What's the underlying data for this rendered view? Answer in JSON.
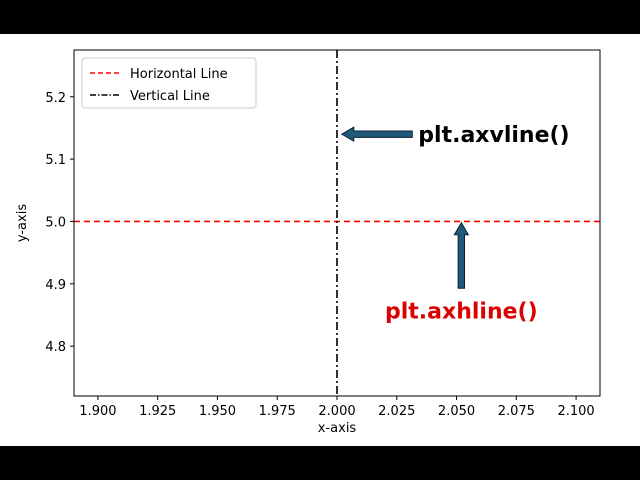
{
  "chart_data": {
    "type": "line",
    "xlabel": "x-axis",
    "ylabel": "y-axis",
    "xlim": [
      1.89,
      2.11
    ],
    "ylim": [
      4.72,
      5.275
    ],
    "xticks": [
      "1.900",
      "1.925",
      "1.950",
      "1.975",
      "2.000",
      "2.025",
      "2.050",
      "2.075",
      "2.100"
    ],
    "yticks": [
      "4.8",
      "4.9",
      "5.0",
      "5.1",
      "5.2"
    ],
    "grid": false,
    "legend_position": "upper left",
    "series": [
      {
        "name": "Horizontal Line",
        "orientation": "horizontal",
        "y": 5.0,
        "color": "#ff0000",
        "linestyle": "dashed"
      },
      {
        "name": "Vertical Line",
        "orientation": "vertical",
        "x": 2.0,
        "color": "#000000",
        "linestyle": "dashdot"
      }
    ],
    "annotations": [
      {
        "text": "plt.axvline()",
        "color": "#000000",
        "arrow_to": {
          "x": 2.002,
          "y": 5.14
        },
        "text_at": {
          "x": 2.034,
          "y": 5.14
        }
      },
      {
        "text": "plt.axhline()",
        "color": "#dd0000",
        "arrow_to": {
          "x": 2.052,
          "y": 4.998
        },
        "text_at": {
          "x": 2.052,
          "y": 4.88
        }
      }
    ]
  },
  "colors": {
    "arrow_fill": "#1f5a7a",
    "arrow_stroke": "#0b2233",
    "background_bars": "#000000"
  }
}
